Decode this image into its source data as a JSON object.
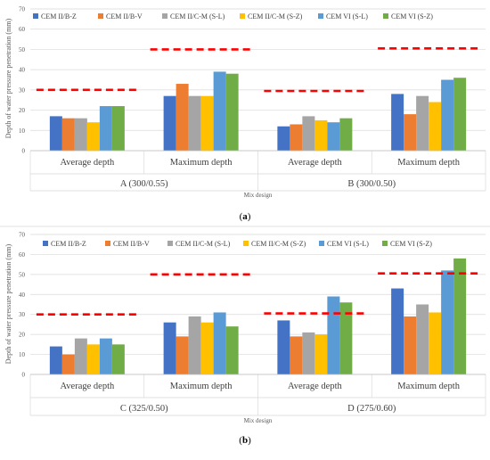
{
  "series_colors": [
    "#4472c4",
    "#ed7d31",
    "#a5a5a5",
    "#ffc000",
    "#5b9bd5",
    "#70ad47"
  ],
  "threshold_color": "#ff0000",
  "chart_data": [
    {
      "type": "bar",
      "caption": "(a)",
      "ylabel": "Depth of water pressure penetration (mm)",
      "xlabel": "Mix design",
      "ylim": [
        0,
        70
      ],
      "yticks": [
        0,
        10,
        20,
        30,
        40,
        50,
        60,
        70
      ],
      "grid": true,
      "legend_position": "top",
      "categories": [
        "Average depth",
        "Maximum depth",
        "Average depth",
        "Maximum depth"
      ],
      "groups": [
        "A (300/0.55)",
        "B (300/0.50)"
      ],
      "series": [
        {
          "name": "CEM II/B-Z",
          "values": [
            17,
            27,
            12,
            28
          ]
        },
        {
          "name": "CEM II/B-V",
          "values": [
            16,
            33,
            13,
            18
          ]
        },
        {
          "name": "CEM II/C-M (S-L)",
          "values": [
            16,
            27,
            17,
            27
          ]
        },
        {
          "name": "CEM II/C-M (S-Z)",
          "values": [
            14,
            27,
            15,
            24
          ]
        },
        {
          "name": "CEM VI (S-L)",
          "values": [
            22,
            39,
            14,
            35
          ]
        },
        {
          "name": "CEM VI (S-Z)",
          "values": [
            22,
            38,
            16,
            36
          ]
        }
      ],
      "thresholds": [
        30,
        50,
        29.5,
        50.5
      ]
    },
    {
      "type": "bar",
      "caption": "(b)",
      "ylabel": "Depth of water pressure penetration (mm)",
      "xlabel": "Mix design",
      "ylim": [
        0,
        70
      ],
      "yticks": [
        0,
        10,
        20,
        30,
        40,
        50,
        60,
        70
      ],
      "grid": true,
      "legend_position": "top",
      "categories": [
        "Average depth",
        "Maximum depth",
        "Average depth",
        "Maximum depth"
      ],
      "groups": [
        "C (325/0.50)",
        "D (275/0.60)"
      ],
      "series": [
        {
          "name": "CEM II/B-Z",
          "values": [
            14,
            26,
            27,
            43
          ]
        },
        {
          "name": "CEM II/B-V",
          "values": [
            10,
            19,
            19,
            29
          ]
        },
        {
          "name": "CEM II/C-M (S-L)",
          "values": [
            18,
            29,
            21,
            35
          ]
        },
        {
          "name": "CEM II/C-M (S-Z)",
          "values": [
            15,
            26,
            20,
            31
          ]
        },
        {
          "name": "CEM VI (S-L)",
          "values": [
            18,
            31,
            39,
            52
          ]
        },
        {
          "name": "CEM VI (S-Z)",
          "values": [
            15,
            24,
            36,
            58
          ]
        }
      ],
      "thresholds": [
        30,
        50,
        30.5,
        50.5
      ]
    }
  ]
}
